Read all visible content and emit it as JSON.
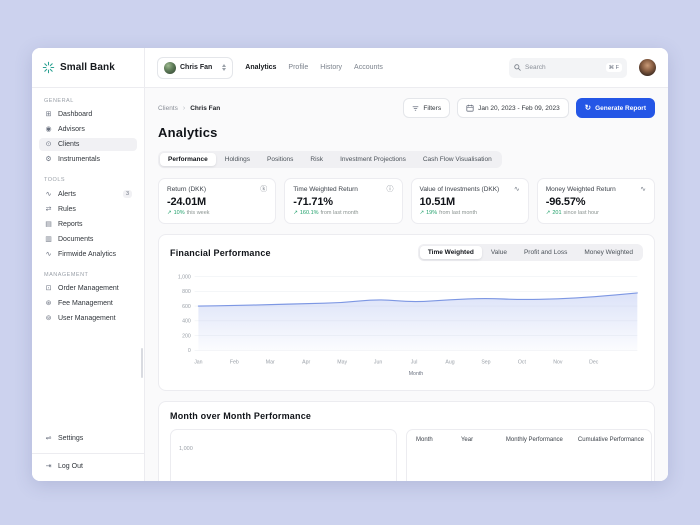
{
  "app": {
    "name": "Small Bank"
  },
  "colors": {
    "background": "#ccd2ee",
    "accent_blue": "#2456e6",
    "positive_green": "#1fa06a",
    "logo_teal": "#2ba192",
    "chart_line": "#7d97e3",
    "chart_fill": "#b9c6f2"
  },
  "sidebar": {
    "sections": [
      {
        "label": "GENERAL",
        "items": [
          {
            "label": "Dashboard",
            "icon": "dashboard-icon"
          },
          {
            "label": "Advisors",
            "icon": "advisors-icon"
          },
          {
            "label": "Clients",
            "icon": "clients-icon",
            "active": true
          },
          {
            "label": "Instrumentals",
            "icon": "instrumentals-icon"
          }
        ]
      },
      {
        "label": "TOOLS",
        "items": [
          {
            "label": "Alerts",
            "icon": "alerts-icon",
            "badge": "3"
          },
          {
            "label": "Rules",
            "icon": "rules-icon"
          },
          {
            "label": "Reports",
            "icon": "reports-icon"
          },
          {
            "label": "Documents",
            "icon": "documents-icon"
          },
          {
            "label": "Firmwide Analytics",
            "icon": "firmwide-analytics-icon"
          }
        ]
      },
      {
        "label": "MANAGEMENT",
        "items": [
          {
            "label": "Order Management",
            "icon": "order-management-icon"
          },
          {
            "label": "Fee Management",
            "icon": "fee-management-icon"
          },
          {
            "label": "User Management",
            "icon": "user-management-icon"
          }
        ]
      }
    ],
    "settings": {
      "label": "Settings",
      "icon": "settings-icon"
    },
    "logout": {
      "label": "Log Out",
      "icon": "logout-icon"
    }
  },
  "topbar": {
    "user_select": "Chris Fan",
    "nav": [
      {
        "label": "Analytics",
        "active": true
      },
      {
        "label": "Profile"
      },
      {
        "label": "History"
      },
      {
        "label": "Accounts"
      }
    ],
    "search": {
      "placeholder": "Search",
      "shortcut": "⌘ F"
    }
  },
  "header": {
    "breadcrumb": [
      "Clients",
      "Chris Fan"
    ],
    "filters_label": "Filters",
    "date_range": "Jan 20, 2023 - Feb 09, 2023",
    "generate_report_label": "Generate Report",
    "title": "Analytics"
  },
  "page_tabs": [
    {
      "label": "Performance",
      "active": true
    },
    {
      "label": "Holdings"
    },
    {
      "label": "Positions"
    },
    {
      "label": "Risk"
    },
    {
      "label": "Investment Projections"
    },
    {
      "label": "Cash Flow Visualisation"
    }
  ],
  "stats": [
    {
      "label": "Return (DKK)",
      "icon": "currency-icon",
      "value": "-24.01M",
      "delta_value": "10%",
      "delta_text": "this week"
    },
    {
      "label": "Time Weighted Return",
      "icon": "info-icon",
      "value": "-71.71%",
      "delta_value": "160.1%",
      "delta_text": "from last month"
    },
    {
      "label": "Value of Investments (DKK)",
      "icon": "activity-icon",
      "value": "10.51M",
      "delta_value": "19%",
      "delta_text": "from last month"
    },
    {
      "label": "Money Weighted Return",
      "icon": "activity-icon",
      "value": "-96.57%",
      "delta_value": "201",
      "delta_text": "since last hour"
    }
  ],
  "chart_data": {
    "type": "area",
    "title": "Financial Performance",
    "toggles": [
      "Time Weighted",
      "Value",
      "Profit and Loss",
      "Money Weighted"
    ],
    "active_toggle": "Time Weighted",
    "x": [
      "Jan",
      "Feb",
      "Mar",
      "Apr",
      "May",
      "Jun",
      "Jul",
      "Aug",
      "Sep",
      "Oct",
      "Nov",
      "Dec"
    ],
    "values": [
      600,
      608,
      620,
      633,
      645,
      695,
      652,
      688,
      706,
      686,
      698,
      724
    ],
    "end_value": 778,
    "xlabel": "Month",
    "ylim": [
      0,
      1000
    ],
    "yticks": [
      1000,
      800,
      600,
      400,
      200,
      0
    ],
    "grid": true,
    "legend": "none"
  },
  "month_over_month": {
    "title": "Month over Month Performance",
    "mini_chart_ytick": "1,000",
    "table_headers": [
      "Month",
      "Year",
      "Monthly Performance",
      "Cumulative Performance"
    ]
  }
}
